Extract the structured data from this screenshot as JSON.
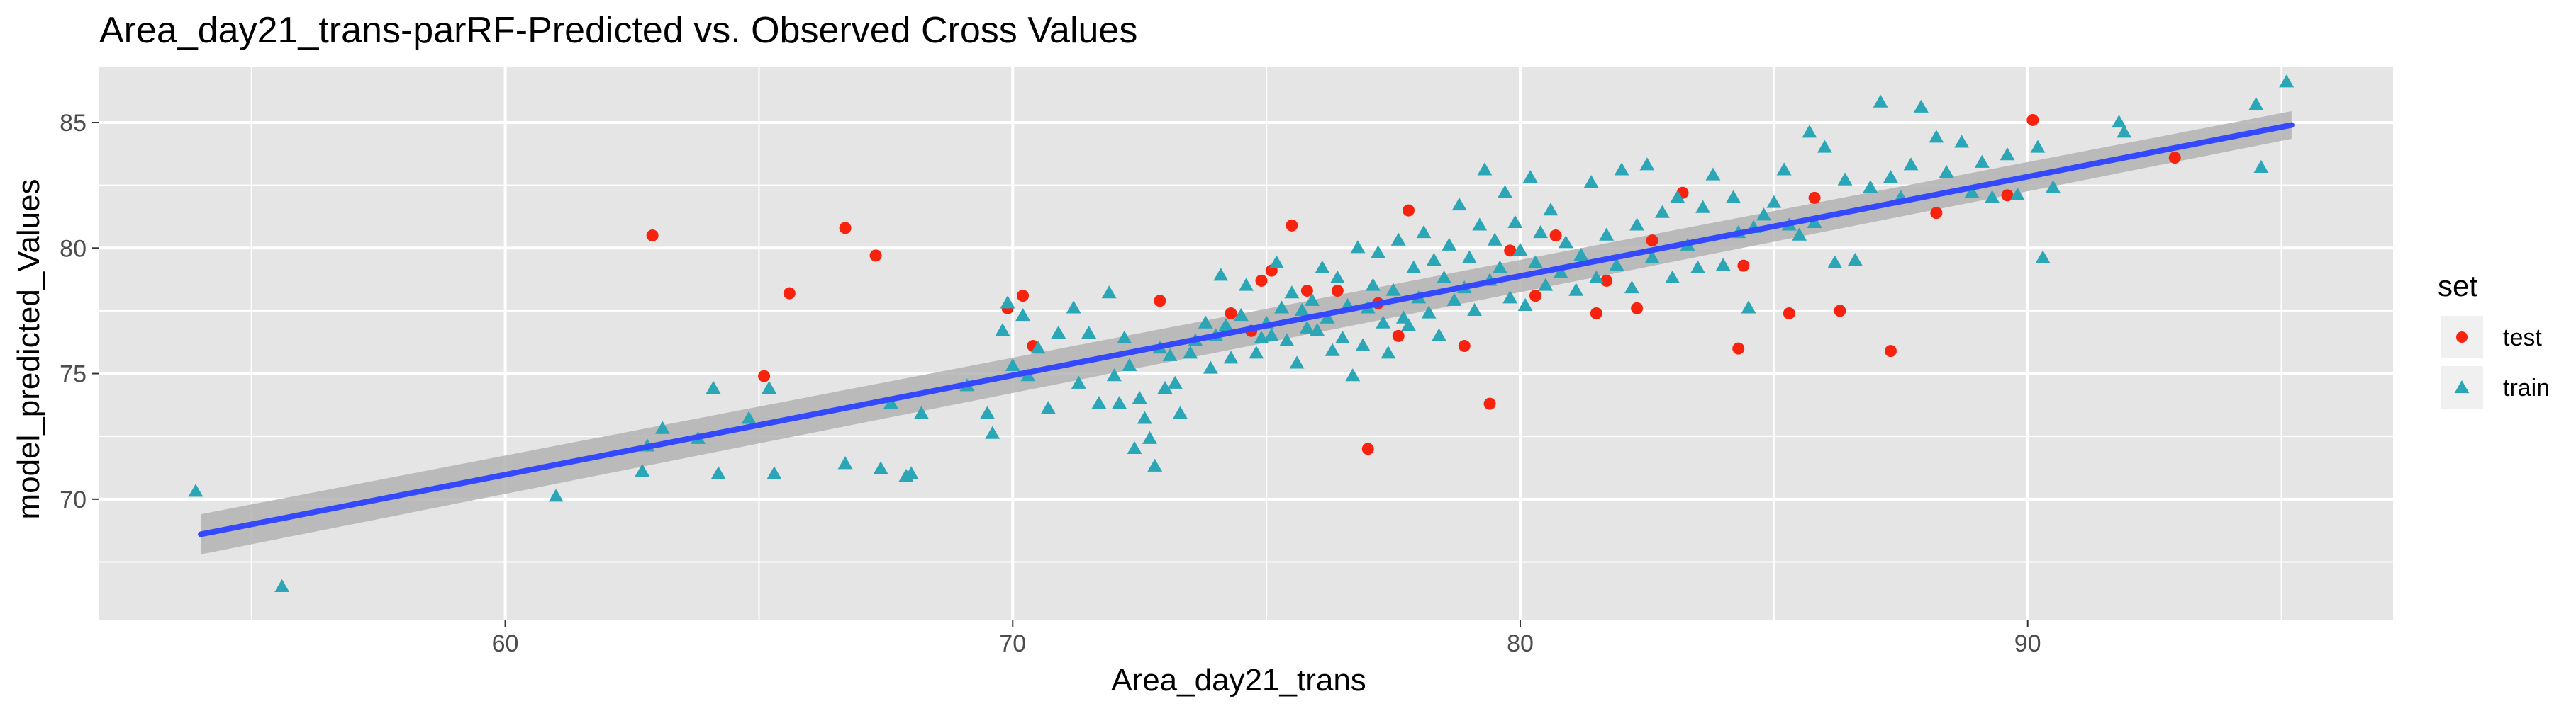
{
  "chart_data": {
    "type": "scatter",
    "title": "Area_day21_trans-parRF-Predicted vs. Observed Cross Values",
    "xlabel": "Area_day21_trans",
    "ylabel": "model_predicted_Values",
    "xlim": [
      52,
      97.2
    ],
    "ylim": [
      65.2,
      87.2
    ],
    "x_ticks": [
      60,
      70,
      80,
      90
    ],
    "y_ticks": [
      70,
      75,
      80,
      85
    ],
    "grid": true,
    "legend": {
      "title": "set",
      "position": "right",
      "entries": [
        "test",
        "train"
      ]
    },
    "colors": {
      "panel_bg": "#e5e5e5",
      "grid": "#ffffff",
      "test": "#f8230f",
      "train": "#2aa6b6",
      "fit_line": "#3348ff",
      "ci_band": "#b3b3b3"
    },
    "fit_line": {
      "x": [
        54,
        95.2
      ],
      "y": [
        68.6,
        84.9
      ],
      "ci_halfwidth": [
        0.8,
        0.55
      ]
    },
    "series": [
      {
        "name": "test",
        "marker": "circle",
        "points": [
          [
            62.9,
            80.5
          ],
          [
            65.1,
            74.9
          ],
          [
            65.6,
            78.2
          ],
          [
            66.7,
            80.8
          ],
          [
            67.3,
            79.7
          ],
          [
            69.9,
            77.6
          ],
          [
            70.2,
            78.1
          ],
          [
            70.4,
            76.1
          ],
          [
            72.9,
            77.9
          ],
          [
            74.3,
            77.4
          ],
          [
            74.7,
            76.7
          ],
          [
            74.9,
            78.7
          ],
          [
            75.1,
            79.1
          ],
          [
            75.5,
            80.9
          ],
          [
            75.8,
            78.3
          ],
          [
            76.4,
            78.3
          ],
          [
            77.0,
            72.0
          ],
          [
            77.2,
            77.8
          ],
          [
            77.6,
            76.5
          ],
          [
            77.8,
            81.5
          ],
          [
            78.9,
            76.1
          ],
          [
            79.4,
            73.8
          ],
          [
            79.8,
            79.9
          ],
          [
            80.3,
            78.1
          ],
          [
            80.7,
            80.5
          ],
          [
            81.5,
            77.4
          ],
          [
            81.7,
            78.7
          ],
          [
            82.3,
            77.6
          ],
          [
            82.6,
            80.3
          ],
          [
            83.2,
            82.2
          ],
          [
            84.3,
            76.0
          ],
          [
            84.4,
            79.3
          ],
          [
            85.3,
            77.4
          ],
          [
            85.8,
            82.0
          ],
          [
            86.3,
            77.5
          ],
          [
            87.3,
            75.9
          ],
          [
            88.2,
            81.4
          ],
          [
            89.6,
            82.1
          ],
          [
            90.1,
            85.1
          ],
          [
            92.9,
            83.6
          ]
        ]
      },
      {
        "name": "train",
        "marker": "triangle",
        "points": [
          [
            53.9,
            70.3
          ],
          [
            55.6,
            66.5
          ],
          [
            61.0,
            70.1
          ],
          [
            62.7,
            71.1
          ],
          [
            62.8,
            72.1
          ],
          [
            63.1,
            72.8
          ],
          [
            63.8,
            72.4
          ],
          [
            64.1,
            74.4
          ],
          [
            64.2,
            71.0
          ],
          [
            64.8,
            73.2
          ],
          [
            65.2,
            74.4
          ],
          [
            65.3,
            71.0
          ],
          [
            66.7,
            71.4
          ],
          [
            67.4,
            71.2
          ],
          [
            67.6,
            73.8
          ],
          [
            67.9,
            70.9
          ],
          [
            68.0,
            71.0
          ],
          [
            68.2,
            73.4
          ],
          [
            69.1,
            74.5
          ],
          [
            69.5,
            73.4
          ],
          [
            69.6,
            72.6
          ],
          [
            69.8,
            76.7
          ],
          [
            69.9,
            77.8
          ],
          [
            70.0,
            75.3
          ],
          [
            70.2,
            77.3
          ],
          [
            70.3,
            74.9
          ],
          [
            70.5,
            76.0
          ],
          [
            70.7,
            73.6
          ],
          [
            70.9,
            76.6
          ],
          [
            71.2,
            77.6
          ],
          [
            71.3,
            74.6
          ],
          [
            71.5,
            76.6
          ],
          [
            71.7,
            73.8
          ],
          [
            71.9,
            78.2
          ],
          [
            72.0,
            74.9
          ],
          [
            72.1,
            73.8
          ],
          [
            72.2,
            76.4
          ],
          [
            72.3,
            75.3
          ],
          [
            72.4,
            72.0
          ],
          [
            72.5,
            74.0
          ],
          [
            72.6,
            73.2
          ],
          [
            72.7,
            72.4
          ],
          [
            72.8,
            71.3
          ],
          [
            72.9,
            76.0
          ],
          [
            73.0,
            74.4
          ],
          [
            73.1,
            75.7
          ],
          [
            73.2,
            74.6
          ],
          [
            73.3,
            73.4
          ],
          [
            73.5,
            75.8
          ],
          [
            73.6,
            76.3
          ],
          [
            73.8,
            77.0
          ],
          [
            73.9,
            75.2
          ],
          [
            74.0,
            76.5
          ],
          [
            74.1,
            78.9
          ],
          [
            74.2,
            76.9
          ],
          [
            74.3,
            75.6
          ],
          [
            74.5,
            77.3
          ],
          [
            74.6,
            78.5
          ],
          [
            74.8,
            75.8
          ],
          [
            74.9,
            76.4
          ],
          [
            75.0,
            77.0
          ],
          [
            75.1,
            76.5
          ],
          [
            75.2,
            79.4
          ],
          [
            75.3,
            77.6
          ],
          [
            75.4,
            76.3
          ],
          [
            75.5,
            78.2
          ],
          [
            75.6,
            75.4
          ],
          [
            75.7,
            77.5
          ],
          [
            75.8,
            76.8
          ],
          [
            75.9,
            77.9
          ],
          [
            76.0,
            76.7
          ],
          [
            76.1,
            79.2
          ],
          [
            76.2,
            77.2
          ],
          [
            76.3,
            75.9
          ],
          [
            76.4,
            78.8
          ],
          [
            76.5,
            76.4
          ],
          [
            76.6,
            77.7
          ],
          [
            76.7,
            74.9
          ],
          [
            76.8,
            80.0
          ],
          [
            76.9,
            76.1
          ],
          [
            77.0,
            77.6
          ],
          [
            77.1,
            78.5
          ],
          [
            77.2,
            79.8
          ],
          [
            77.3,
            77.0
          ],
          [
            77.4,
            75.8
          ],
          [
            77.5,
            78.3
          ],
          [
            77.6,
            80.3
          ],
          [
            77.7,
            77.2
          ],
          [
            77.8,
            76.9
          ],
          [
            77.9,
            79.2
          ],
          [
            78.0,
            78.0
          ],
          [
            78.1,
            80.6
          ],
          [
            78.2,
            77.4
          ],
          [
            78.3,
            79.5
          ],
          [
            78.4,
            76.5
          ],
          [
            78.5,
            78.8
          ],
          [
            78.6,
            80.1
          ],
          [
            78.7,
            77.9
          ],
          [
            78.8,
            81.7
          ],
          [
            78.9,
            78.4
          ],
          [
            79.0,
            79.6
          ],
          [
            79.1,
            77.5
          ],
          [
            79.2,
            80.9
          ],
          [
            79.3,
            83.1
          ],
          [
            79.4,
            78.7
          ],
          [
            79.5,
            80.3
          ],
          [
            79.6,
            79.2
          ],
          [
            79.7,
            82.2
          ],
          [
            79.8,
            78.0
          ],
          [
            79.9,
            81.0
          ],
          [
            80.0,
            79.9
          ],
          [
            80.1,
            77.7
          ],
          [
            80.2,
            82.8
          ],
          [
            80.3,
            79.4
          ],
          [
            80.4,
            80.6
          ],
          [
            80.5,
            78.5
          ],
          [
            80.6,
            81.5
          ],
          [
            80.8,
            79.0
          ],
          [
            80.9,
            80.2
          ],
          [
            81.1,
            78.3
          ],
          [
            81.2,
            79.7
          ],
          [
            81.4,
            82.6
          ],
          [
            81.5,
            78.8
          ],
          [
            81.7,
            80.5
          ],
          [
            81.9,
            79.3
          ],
          [
            82.0,
            83.1
          ],
          [
            82.2,
            78.4
          ],
          [
            82.3,
            80.9
          ],
          [
            82.5,
            83.3
          ],
          [
            82.6,
            79.6
          ],
          [
            82.8,
            81.4
          ],
          [
            83.0,
            78.8
          ],
          [
            83.1,
            82.0
          ],
          [
            83.3,
            80.1
          ],
          [
            83.5,
            79.2
          ],
          [
            83.6,
            81.6
          ],
          [
            83.8,
            82.9
          ],
          [
            84.0,
            79.3
          ],
          [
            84.2,
            82.0
          ],
          [
            84.3,
            80.6
          ],
          [
            84.5,
            77.6
          ],
          [
            84.6,
            80.8
          ],
          [
            84.8,
            81.3
          ],
          [
            85.0,
            81.8
          ],
          [
            85.2,
            83.1
          ],
          [
            85.3,
            80.9
          ],
          [
            85.5,
            80.5
          ],
          [
            85.7,
            84.6
          ],
          [
            85.8,
            81.0
          ],
          [
            86.0,
            84.0
          ],
          [
            86.2,
            79.4
          ],
          [
            86.4,
            82.7
          ],
          [
            86.6,
            79.5
          ],
          [
            86.9,
            82.4
          ],
          [
            87.1,
            85.8
          ],
          [
            87.3,
            82.8
          ],
          [
            87.5,
            82.0
          ],
          [
            87.7,
            83.3
          ],
          [
            87.9,
            85.6
          ],
          [
            88.2,
            84.4
          ],
          [
            88.4,
            83.0
          ],
          [
            88.7,
            84.2
          ],
          [
            88.9,
            82.2
          ],
          [
            89.1,
            83.4
          ],
          [
            89.3,
            82.0
          ],
          [
            89.6,
            83.7
          ],
          [
            89.8,
            82.1
          ],
          [
            90.2,
            84.0
          ],
          [
            90.3,
            79.6
          ],
          [
            90.5,
            82.4
          ],
          [
            91.8,
            85.0
          ],
          [
            91.9,
            84.6
          ],
          [
            94.5,
            85.7
          ],
          [
            94.6,
            83.2
          ],
          [
            95.1,
            86.6
          ]
        ]
      }
    ]
  }
}
